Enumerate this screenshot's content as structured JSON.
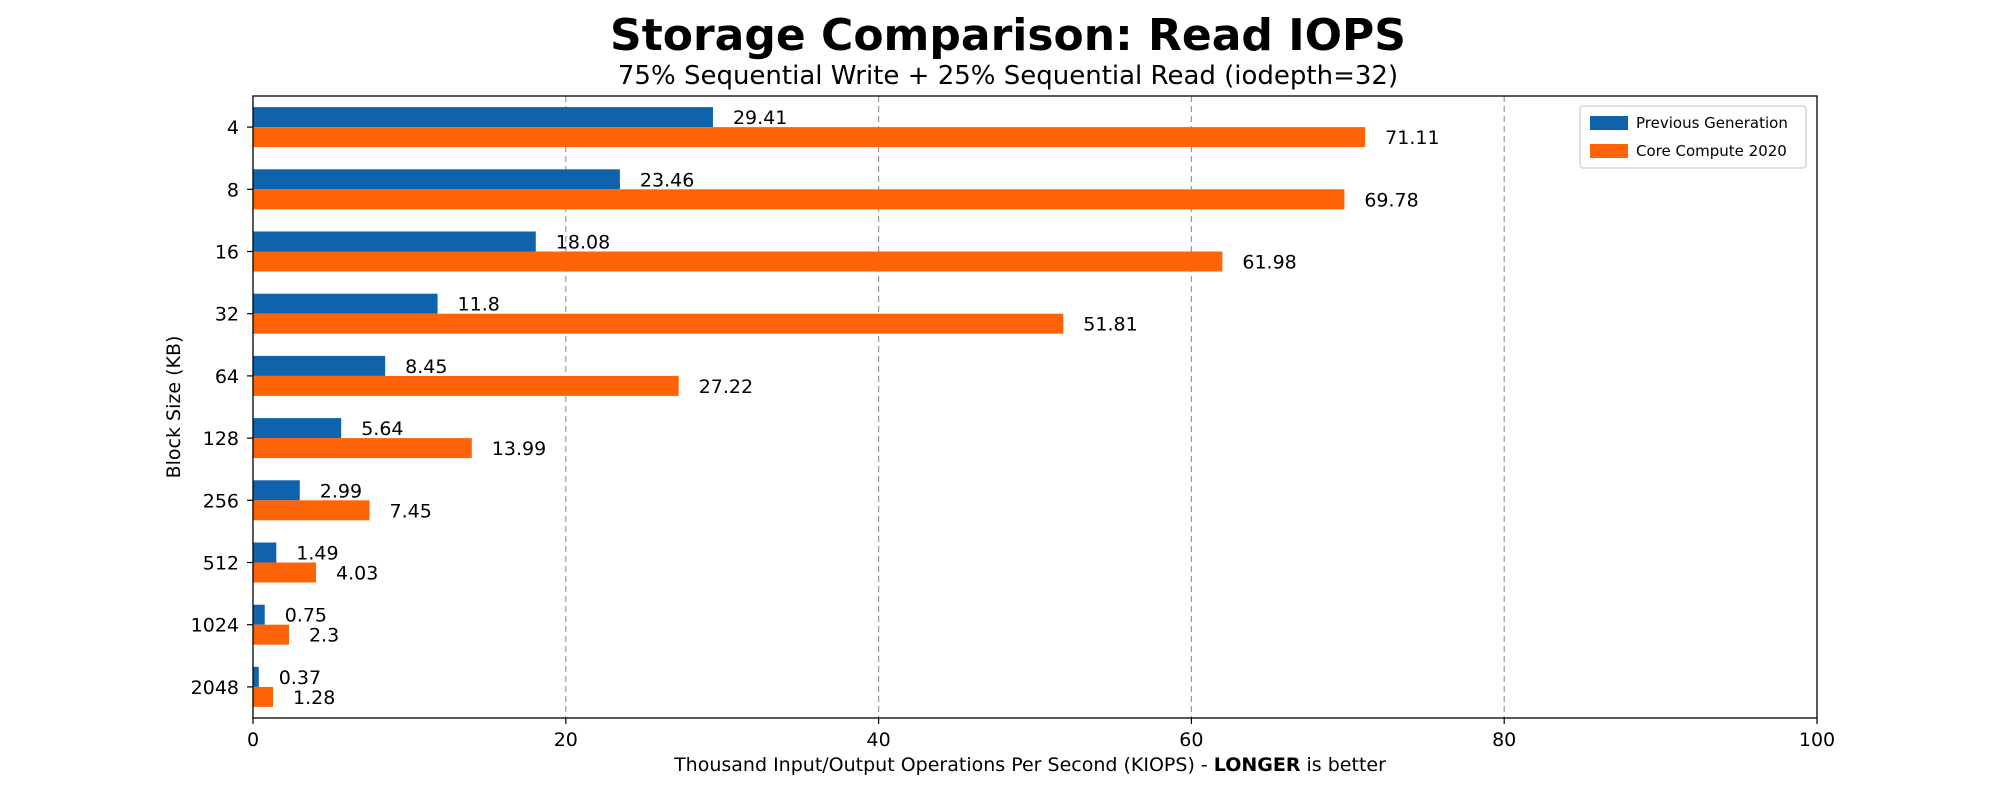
{
  "chart_data": {
    "type": "bar",
    "orientation": "horizontal",
    "title": "Storage Comparison: Read IOPS",
    "subtitle": "75% Sequential Write + 25% Sequential Read (iodepth=32)",
    "xlabel_prefix": "Thousand Input/Output Operations Per Second (KIOPS) - ",
    "xlabel_bold": "LONGER",
    "xlabel_suffix": " is better",
    "ylabel": "Block Size (KB)",
    "categories": [
      "4",
      "8",
      "16",
      "32",
      "64",
      "128",
      "256",
      "512",
      "1024",
      "2048"
    ],
    "series": [
      {
        "name": "Previous Generation",
        "color": "#0f62ac",
        "values": [
          29.41,
          23.46,
          18.08,
          11.8,
          8.45,
          5.64,
          2.99,
          1.49,
          0.75,
          0.37
        ],
        "labels": [
          "29.41",
          "23.46",
          "18.08",
          "11.8",
          "8.45",
          "5.64",
          "2.99",
          "1.49",
          "0.75",
          "0.37"
        ]
      },
      {
        "name": "Core Compute 2020",
        "color": "#ff6308",
        "values": [
          71.11,
          69.78,
          61.98,
          51.81,
          27.22,
          13.99,
          7.45,
          4.03,
          2.3,
          1.28
        ],
        "labels": [
          "71.11",
          "69.78",
          "61.98",
          "51.81",
          "27.22",
          "13.99",
          "7.45",
          "4.03",
          "2.3",
          "1.28"
        ]
      }
    ],
    "xlim": [
      0,
      100
    ],
    "xticks": [
      "0",
      "20",
      "40",
      "60",
      "80",
      "100"
    ],
    "grid": "vertical dashed",
    "legend_position": "top-right"
  }
}
